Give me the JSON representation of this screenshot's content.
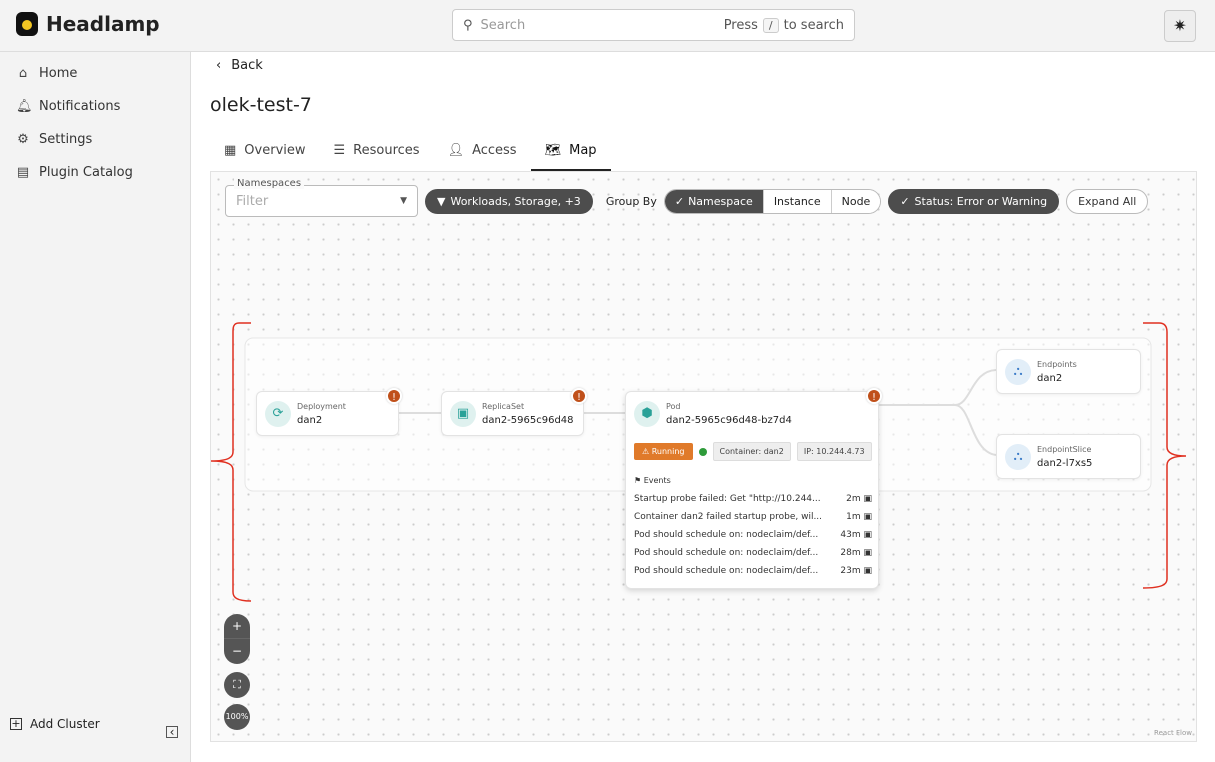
{
  "app": {
    "name": "Headlamp"
  },
  "search": {
    "placeholder": "Search",
    "hint_prefix": "Press",
    "hint_key": "/",
    "hint_suffix": "to search"
  },
  "sidebar": {
    "items": [
      {
        "label": "Home",
        "icon": "home-icon"
      },
      {
        "label": "Notifications",
        "icon": "bell-icon"
      },
      {
        "label": "Settings",
        "icon": "gear-icon"
      },
      {
        "label": "Plugin Catalog",
        "icon": "catalog-icon"
      }
    ],
    "add_cluster": "Add Cluster"
  },
  "page": {
    "back": "Back",
    "title": "olek-test-7",
    "tabs": [
      {
        "label": "Overview"
      },
      {
        "label": "Resources"
      },
      {
        "label": "Access"
      },
      {
        "label": "Map",
        "active": true
      }
    ]
  },
  "map": {
    "namespaces_label": "Namespaces",
    "namespaces_placeholder": "Filter",
    "filter_chip": "Workloads, Storage, +3",
    "group_by_label": "Group By",
    "group_options": [
      "Namespace",
      "Instance",
      "Node"
    ],
    "group_selected": "Namespace",
    "status_chip": "Status: Error or Warning",
    "expand_all": "Expand All",
    "nodes": [
      {
        "kind": "Deployment",
        "name": "dan2",
        "warning": true
      },
      {
        "kind": "ReplicaSet",
        "name": "dan2-5965c96d48",
        "warning": true
      },
      {
        "kind": "Pod",
        "name": "dan2-5965c96d48-bz7d4",
        "warning": true,
        "status": "Running",
        "container": "Container: dan2",
        "ip": "IP: 10.244.4.73",
        "events_label": "Events",
        "events": [
          {
            "message": "Startup probe failed: Get \"http://10.244...",
            "age": "2m"
          },
          {
            "message": "Container dan2 failed startup probe, wil...",
            "age": "1m"
          },
          {
            "message": "Pod should schedule on: nodeclaim/def...",
            "age": "43m"
          },
          {
            "message": "Pod should schedule on: nodeclaim/def...",
            "age": "28m"
          },
          {
            "message": "Pod should schedule on: nodeclaim/def...",
            "age": "23m"
          }
        ]
      },
      {
        "kind": "Endpoints",
        "name": "dan2"
      },
      {
        "kind": "EndpointSlice",
        "name": "dan2-l7xs5"
      }
    ],
    "zoom_in": "+",
    "zoom_out": "−",
    "zoom_level": "100%",
    "attribution": "React Flow",
    "colors": {
      "warning": "#c0501a",
      "running": "#e07a2a",
      "annotation": "#e03020"
    }
  }
}
